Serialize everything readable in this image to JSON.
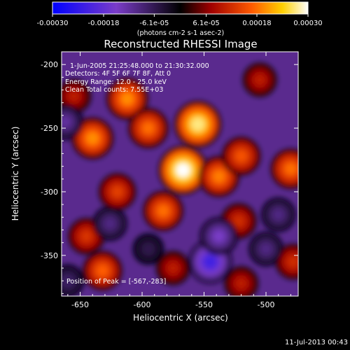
{
  "colorbar": {
    "ticks": [
      "-0.00030",
      "-0.00018",
      "-6.1e-05",
      "6.1e-05",
      "0.00018",
      "0.00030"
    ],
    "tick_values": [
      -0.0003,
      -0.00018,
      -6.1e-05,
      6.1e-05,
      0.00018,
      0.0003
    ],
    "range": [
      -0.0003,
      0.0003
    ],
    "units": "(photons cm-2 s-1 asec-2)",
    "colors": [
      "#0000ff",
      "#7a3cc8",
      "#000000",
      "#cc0000",
      "#ff7700",
      "#ffffff"
    ]
  },
  "title": "Reconstructed RHESSI Image",
  "info": {
    "time": "1-Jun-2005 21:25:48.000 to 21:30:32.000",
    "detectors": "Detectors: 4F 5F 6F 7F 8F, Att 0",
    "energy": "Energy Range: 12.0 - 25.0 keV",
    "clean": "Clean    Total counts: 7.55E+03",
    "peak": "Position of Peak = [-567,-283]"
  },
  "footer": {
    "timestamp": "11-Jul-2013 00:43"
  },
  "chart_data": {
    "type": "heatmap",
    "title": "Reconstructed RHESSI Image",
    "xlabel": "Heliocentric X (arcsec)",
    "ylabel": "Heliocentric Y (arcsec)",
    "xlim": [
      -665,
      -474
    ],
    "ylim": [
      -382,
      -190
    ],
    "xticks": [
      -650,
      -600,
      -550,
      -500
    ],
    "yticks": [
      -200,
      -250,
      -300,
      -350
    ],
    "xtick_labels": [
      "-650",
      "-600",
      "-550",
      "-500"
    ],
    "ytick_labels": [
      "-200",
      "-250",
      "-300",
      "-350"
    ],
    "value_units": "photons cm-2 s-1 asec-2",
    "peak": {
      "x": -567,
      "y": -283,
      "value": 0.0003
    },
    "features": [
      {
        "x": -567,
        "y": -283,
        "value": 0.0003
      },
      {
        "x": -555,
        "y": -247,
        "value": 0.00027
      },
      {
        "x": -612,
        "y": -227,
        "value": 0.0002
      },
      {
        "x": -640,
        "y": -258,
        "value": 0.0002
      },
      {
        "x": -595,
        "y": -250,
        "value": 0.00018
      },
      {
        "x": -538,
        "y": -288,
        "value": 0.00019
      },
      {
        "x": -520,
        "y": -272,
        "value": 0.00016
      },
      {
        "x": -583,
        "y": -315,
        "value": 0.00018
      },
      {
        "x": -620,
        "y": -300,
        "value": 0.00014
      },
      {
        "x": -645,
        "y": -335,
        "value": 0.00013
      },
      {
        "x": -632,
        "y": -362,
        "value": 0.00017
      },
      {
        "x": -480,
        "y": -282,
        "value": 0.00018
      },
      {
        "x": -522,
        "y": -323,
        "value": 0.00012
      },
      {
        "x": -505,
        "y": -212,
        "value": 0.0001
      },
      {
        "x": -575,
        "y": -360,
        "value": 0.0001
      },
      {
        "x": -478,
        "y": -355,
        "value": 0.00012
      },
      {
        "x": -520,
        "y": -372,
        "value": 0.0001
      },
      {
        "x": -655,
        "y": -225,
        "value": 0.0001
      },
      {
        "x": -662,
        "y": -245,
        "value": -0.00012
      },
      {
        "x": -545,
        "y": -355,
        "value": -0.00022
      },
      {
        "x": -538,
        "y": -335,
        "value": -0.00015
      },
      {
        "x": -500,
        "y": -345,
        "value": -0.0001
      },
      {
        "x": -626,
        "y": -325,
        "value": -0.0001
      },
      {
        "x": -490,
        "y": -318,
        "value": -0.0001
      },
      {
        "x": -660,
        "y": -370,
        "value": -8e-05
      },
      {
        "x": -595,
        "y": -345,
        "value": -6e-05
      }
    ]
  }
}
